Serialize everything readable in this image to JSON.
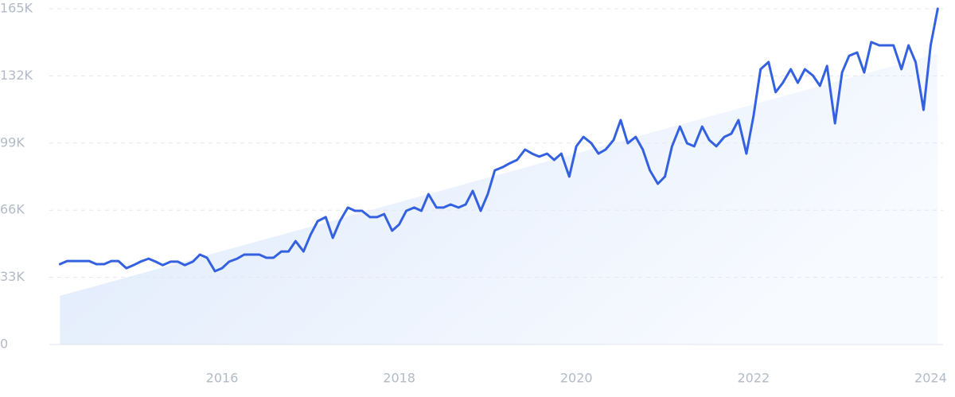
{
  "chart_data": {
    "type": "line",
    "x": [
      2014.17,
      2014.25,
      2014.33,
      2014.42,
      2014.5,
      2014.58,
      2014.67,
      2014.75,
      2014.83,
      2014.92,
      2015.0,
      2015.08,
      2015.17,
      2015.25,
      2015.33,
      2015.42,
      2015.5,
      2015.58,
      2015.67,
      2015.75,
      2015.83,
      2015.92,
      2016.0,
      2016.08,
      2016.17,
      2016.25,
      2016.33,
      2016.42,
      2016.5,
      2016.58,
      2016.67,
      2016.75,
      2016.83,
      2016.92,
      2017.0,
      2017.08,
      2017.17,
      2017.25,
      2017.33,
      2017.42,
      2017.5,
      2017.58,
      2017.67,
      2017.75,
      2017.83,
      2017.92,
      2018.0,
      2018.08,
      2018.17,
      2018.25,
      2018.33,
      2018.42,
      2018.5,
      2018.58,
      2018.67,
      2018.75,
      2018.83,
      2018.92,
      2019.0,
      2019.08,
      2019.17,
      2019.25,
      2019.33,
      2019.42,
      2019.5,
      2019.58,
      2019.67,
      2019.75,
      2019.83,
      2019.92,
      2020.0,
      2020.08,
      2020.17,
      2020.25,
      2020.33,
      2020.42,
      2020.5,
      2020.58,
      2020.67,
      2020.75,
      2020.83,
      2020.92,
      2021.0,
      2021.08,
      2021.17,
      2021.25,
      2021.33,
      2021.42,
      2021.5,
      2021.58,
      2021.67,
      2021.75,
      2021.83,
      2021.92,
      2022.0,
      2022.08,
      2022.17,
      2022.25,
      2022.33,
      2022.42,
      2022.5,
      2022.58,
      2022.67,
      2022.75,
      2022.83,
      2022.92,
      2023.0,
      2023.08,
      2023.17,
      2023.25,
      2023.33,
      2023.42,
      2023.5,
      2023.58,
      2023.67,
      2023.75,
      2023.83,
      2023.92,
      2024.0,
      2024.08
    ],
    "series": [
      {
        "color": "#3461df",
        "values": [
          39500,
          41000,
          41000,
          41000,
          41000,
          39500,
          39500,
          41000,
          41000,
          37500,
          39000,
          40700,
          42200,
          40700,
          39000,
          40700,
          40700,
          39000,
          40700,
          44200,
          42600,
          36000,
          37500,
          40700,
          42200,
          44200,
          44200,
          44200,
          42600,
          42600,
          45700,
          45700,
          50800,
          45700,
          54000,
          60600,
          62600,
          52400,
          60600,
          67300,
          65700,
          65700,
          62600,
          62600,
          64100,
          55900,
          59000,
          65700,
          67300,
          65700,
          73900,
          67300,
          67300,
          68800,
          67300,
          68800,
          75500,
          65700,
          73900,
          85600,
          87200,
          89100,
          90700,
          95800,
          93800,
          92300,
          93800,
          90700,
          93800,
          82500,
          97400,
          102000,
          98900,
          93800,
          95800,
          100500,
          110300,
          98900,
          102000,
          95800,
          85600,
          79000,
          82500,
          97400,
          107100,
          98900,
          97400,
          107100,
          100500,
          97400,
          102000,
          103600,
          110300,
          93800,
          112200,
          135300,
          138800,
          124000,
          128600,
          135300,
          128600,
          135300,
          132200,
          127100,
          136900,
          108700,
          133700,
          141900,
          143500,
          133700,
          148600,
          147000,
          147000,
          147000,
          135300,
          147000,
          138800,
          115300,
          147000,
          165000
        ]
      }
    ],
    "trend_values": [
      23900,
      143000
    ],
    "xlim": [
      2014.05,
      2024.14
    ],
    "xticks": [
      2016,
      2018,
      2020,
      2022,
      2024
    ],
    "ylim": [
      0,
      165000
    ],
    "yticks": [
      0,
      {
        "value": 33000,
        "label": "33K"
      },
      {
        "value": 66000,
        "label": "66K"
      },
      {
        "value": 99000,
        "label": "99K"
      },
      {
        "value": 132000,
        "label": "132K"
      },
      {
        "value": 165000,
        "label": "165K"
      }
    ],
    "grid": true
  }
}
